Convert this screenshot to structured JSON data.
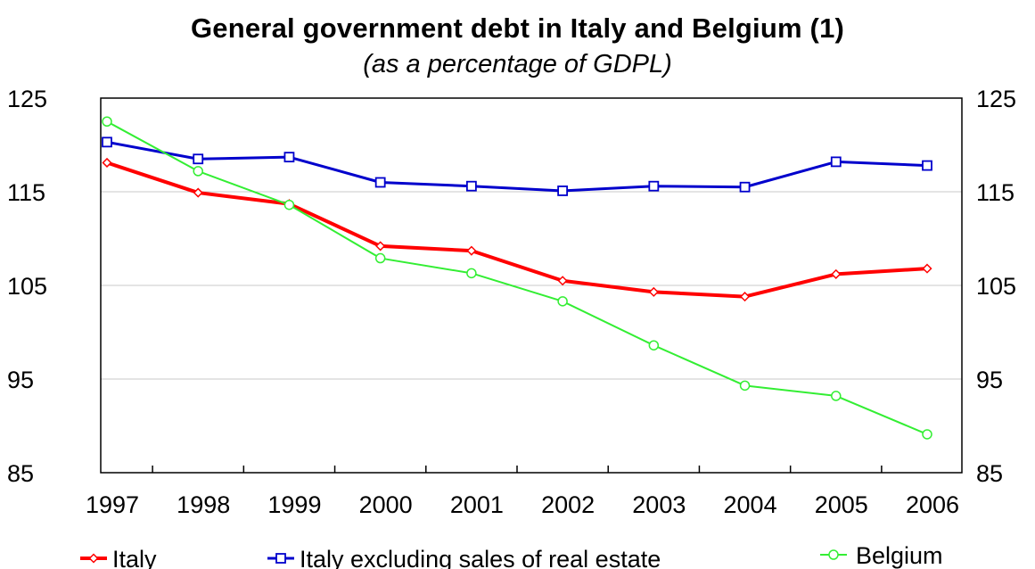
{
  "chart_data": {
    "type": "line",
    "title": "General government debt in Italy and Belgium (1)",
    "subtitle": "(as a percentage of GDPL)",
    "x": [
      "1997",
      "1998",
      "1999",
      "2000",
      "2001",
      "2002",
      "2003",
      "2004",
      "2005",
      "2006"
    ],
    "ylim": [
      85,
      125
    ],
    "y_ticks": [
      "125",
      "115",
      "105",
      "95",
      "85"
    ],
    "y_tick_values": [
      125,
      115,
      105,
      95,
      85
    ],
    "right_axis_ticks": [
      "125",
      "115",
      "105",
      "95",
      "85"
    ],
    "grid": true,
    "legend_placement": "bottom",
    "series": [
      {
        "name": "Italy",
        "color": "#ff0000",
        "marker": "diamond",
        "values": [
          118.1,
          114.9,
          113.7,
          109.2,
          108.7,
          105.5,
          104.3,
          103.8,
          106.2,
          106.8
        ]
      },
      {
        "name": "Italy excluding sales of real estate",
        "color": "#0000cc",
        "marker": "square",
        "values": [
          120.3,
          118.5,
          118.7,
          116.0,
          115.6,
          115.1,
          115.6,
          115.5,
          118.2,
          117.8
        ]
      },
      {
        "name": "Belgium",
        "color": "#33ee33",
        "marker": "circle",
        "values": [
          122.5,
          117.2,
          113.6,
          107.9,
          106.3,
          103.3,
          98.6,
          94.3,
          93.2,
          89.1
        ]
      }
    ]
  }
}
